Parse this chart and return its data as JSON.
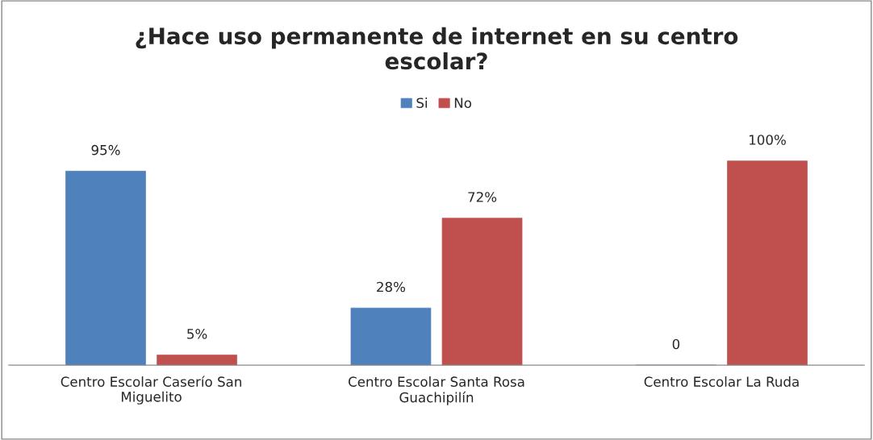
{
  "chart_data": {
    "type": "bar",
    "title": "¿Hace uso permanente de internet en su centro\nescolar?",
    "categories": [
      "Centro Escolar Caserío San\nMiguelito",
      "Centro Escolar Santa Rosa\nGuachipilín",
      "Centro Escolar La Ruda"
    ],
    "series": [
      {
        "name": "Si",
        "color": "#4f81bd",
        "values": [
          95,
          28,
          0
        ],
        "value_labels": [
          "95%",
          "28%",
          "0"
        ]
      },
      {
        "name": "No",
        "color": "#c0504d",
        "values": [
          5,
          72,
          100
        ],
        "value_labels": [
          "5%",
          "72%",
          "100%"
        ]
      }
    ],
    "legend": "top",
    "grid": false
  }
}
